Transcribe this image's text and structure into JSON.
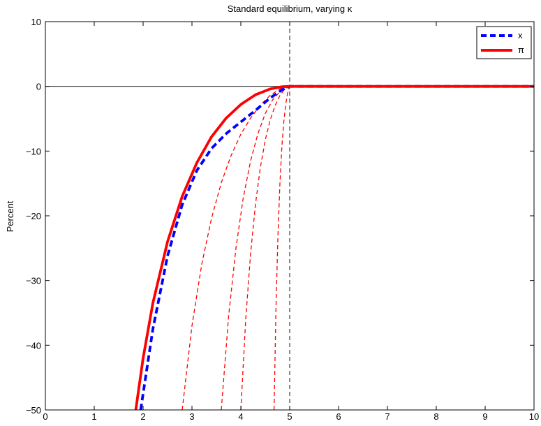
{
  "chart_data": {
    "type": "line",
    "title": "Standard equilibrium, varying κ",
    "xlabel": "",
    "ylabel": "Percent",
    "xlim": [
      0,
      10
    ],
    "ylim": [
      -50,
      10
    ],
    "xticks": [
      "0",
      "1",
      "2",
      "3",
      "4",
      "5",
      "6",
      "7",
      "8",
      "9",
      "10"
    ],
    "yticks": [
      "10",
      "0",
      "−10",
      "−20",
      "−30",
      "−40",
      "−50"
    ],
    "grid": false,
    "legend_position": "top-right",
    "reference_lines": {
      "horizontal_y": 0,
      "vertical_x": 5
    },
    "series": [
      {
        "name": "x",
        "style": "thick-dashed",
        "color": "#0000ff",
        "x": [
          1.95,
          2.2,
          2.5,
          2.8,
          3.1,
          3.4,
          3.7,
          4.0,
          4.3,
          4.6,
          4.85,
          5.0,
          6,
          7,
          8,
          9,
          10
        ],
        "y": [
          -50,
          -37.5,
          -26.2,
          -18.3,
          -13.0,
          -9.6,
          -7.3,
          -5.5,
          -3.7,
          -1.8,
          -0.5,
          0,
          0,
          0,
          0,
          0,
          0
        ]
      },
      {
        "name": "π",
        "style": "thick-solid",
        "color": "#ff0000",
        "x": [
          1.85,
          2.0,
          2.2,
          2.5,
          2.8,
          3.1,
          3.4,
          3.7,
          4.0,
          4.3,
          4.6,
          4.85,
          5.0,
          6,
          7,
          8,
          9,
          10
        ],
        "y": [
          -50,
          -42,
          -33.5,
          -24,
          -17,
          -11.8,
          -7.8,
          -4.9,
          -2.8,
          -1.3,
          -0.4,
          -0.05,
          0,
          0,
          0,
          0,
          0,
          0
        ]
      },
      {
        "style": "thin-dashed",
        "color": "#ff0000",
        "x": [
          2.8,
          3.0,
          3.2,
          3.4,
          3.6,
          3.8,
          4.0,
          4.2,
          4.4,
          4.6,
          4.8,
          5.0
        ],
        "y": [
          -50,
          -37,
          -27.5,
          -20.4,
          -14.9,
          -10.7,
          -7.4,
          -4.9,
          -2.9,
          -1.4,
          -0.4,
          0
        ]
      },
      {
        "style": "thin-dashed",
        "color": "#ff0000",
        "x": [
          3.6,
          3.75,
          3.9,
          4.05,
          4.2,
          4.35,
          4.5,
          4.65,
          4.8,
          5.0
        ],
        "y": [
          -50,
          -35.5,
          -25,
          -17.2,
          -11.5,
          -7.3,
          -4.2,
          -2.1,
          -0.8,
          0
        ]
      },
      {
        "style": "thin-dashed",
        "color": "#ff0000",
        "x": [
          4.0,
          4.1,
          4.2,
          4.3,
          4.4,
          4.5,
          4.6,
          4.7,
          4.8,
          4.9,
          5.0
        ],
        "y": [
          -50,
          -36,
          -25.8,
          -18.2,
          -12.5,
          -8.3,
          -5.2,
          -3.0,
          -1.4,
          -0.4,
          0
        ]
      },
      {
        "style": "thin-dashed",
        "color": "#ff0000",
        "x": [
          4.68,
          4.72,
          4.76,
          4.8,
          4.84,
          4.88,
          4.92,
          4.96,
          5.0
        ],
        "y": [
          -50,
          -34,
          -23,
          -15,
          -9.3,
          -5.4,
          -2.7,
          -0.9,
          0
        ]
      }
    ]
  }
}
